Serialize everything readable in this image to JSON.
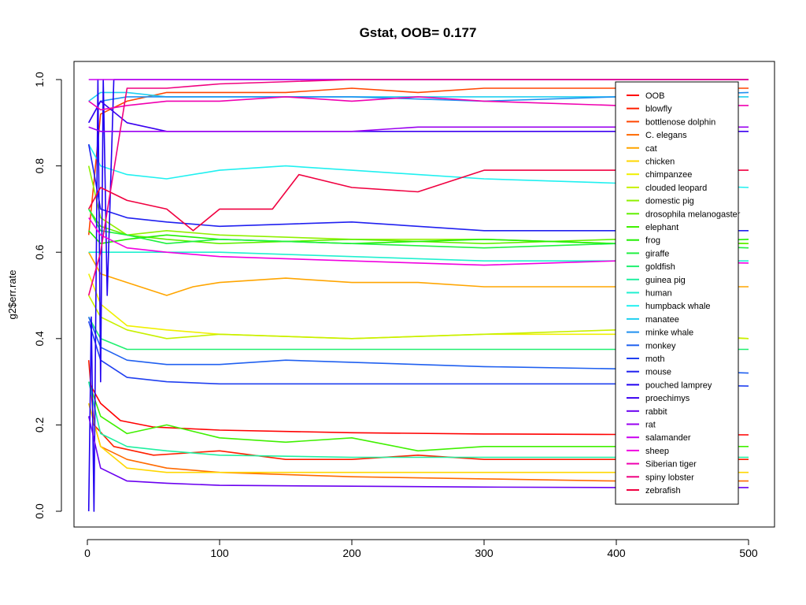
{
  "chart_data": {
    "type": "line",
    "title": "Gstat, OOB= 0.177",
    "xlabel": "",
    "ylabel": "g2$err.rate",
    "xlim": [
      0,
      500
    ],
    "ylim": [
      0,
      1
    ],
    "x_ticks": [
      0,
      100,
      200,
      300,
      400,
      500
    ],
    "y_ticks": [
      0.0,
      0.2,
      0.4,
      0.6,
      0.8,
      1.0
    ],
    "x_tick_labels": [
      "0",
      "100",
      "200",
      "300",
      "400",
      "500"
    ],
    "y_tick_labels": [
      "0.0",
      "0.2",
      "0.4",
      "0.6",
      "0.8",
      "1.0"
    ],
    "grid": false,
    "legend_position": "top-right",
    "series": [
      {
        "name": "OOB",
        "color": "#FF0000",
        "x": [
          1,
          10,
          25,
          50,
          100,
          200,
          300,
          400,
          500
        ],
        "values": [
          0.3,
          0.25,
          0.21,
          0.195,
          0.188,
          0.182,
          0.179,
          0.178,
          0.177
        ]
      },
      {
        "name": "blowfly",
        "color": "#FF2000",
        "x": [
          1,
          5,
          20,
          50,
          100,
          150,
          200,
          250,
          300,
          400,
          500
        ],
        "values": [
          0.35,
          0.2,
          0.15,
          0.13,
          0.14,
          0.12,
          0.12,
          0.13,
          0.12,
          0.12,
          0.12
        ]
      },
      {
        "name": "bottlenose dolphin",
        "color": "#FF4500",
        "x": [
          1,
          10,
          30,
          60,
          100,
          150,
          200,
          250,
          300,
          400,
          500
        ],
        "values": [
          0.64,
          0.92,
          0.95,
          0.97,
          0.97,
          0.97,
          0.98,
          0.97,
          0.98,
          0.98,
          0.98
        ]
      },
      {
        "name": "C. elegans",
        "color": "#FF6A00",
        "x": [
          1,
          10,
          30,
          60,
          100,
          200,
          300,
          400,
          500
        ],
        "values": [
          0.25,
          0.15,
          0.12,
          0.1,
          0.09,
          0.08,
          0.075,
          0.07,
          0.07
        ]
      },
      {
        "name": "cat",
        "color": "#FFA500",
        "x": [
          1,
          10,
          30,
          60,
          80,
          100,
          150,
          200,
          250,
          300,
          400,
          500
        ],
        "values": [
          0.6,
          0.55,
          0.53,
          0.5,
          0.52,
          0.53,
          0.54,
          0.53,
          0.53,
          0.52,
          0.52,
          0.52
        ]
      },
      {
        "name": "chicken",
        "color": "#FFD700",
        "x": [
          1,
          10,
          30,
          60,
          100,
          200,
          300,
          400,
          500
        ],
        "values": [
          0.25,
          0.15,
          0.1,
          0.09,
          0.09,
          0.09,
          0.09,
          0.09,
          0.09
        ]
      },
      {
        "name": "chimpanzee",
        "color": "#F0F000",
        "x": [
          1,
          10,
          30,
          60,
          100,
          200,
          300,
          400,
          500
        ],
        "values": [
          0.55,
          0.48,
          0.43,
          0.42,
          0.41,
          0.4,
          0.41,
          0.41,
          0.4
        ]
      },
      {
        "name": "clouded leopard",
        "color": "#C8F000",
        "x": [
          1,
          10,
          30,
          60,
          100,
          200,
          300,
          400,
          500
        ],
        "values": [
          0.5,
          0.45,
          0.42,
          0.4,
          0.41,
          0.4,
          0.41,
          0.42,
          0.4
        ]
      },
      {
        "name": "domestic pig",
        "color": "#90F000",
        "x": [
          1,
          10,
          30,
          60,
          100,
          200,
          300,
          400,
          500
        ],
        "values": [
          0.8,
          0.68,
          0.64,
          0.65,
          0.64,
          0.63,
          0.63,
          0.62,
          0.62
        ]
      },
      {
        "name": "drosophila melanogaster",
        "color": "#60F000",
        "x": [
          1,
          10,
          30,
          60,
          100,
          200,
          300,
          400,
          500
        ],
        "values": [
          0.7,
          0.66,
          0.64,
          0.63,
          0.62,
          0.63,
          0.62,
          0.63,
          0.62
        ]
      },
      {
        "name": "elephant",
        "color": "#40F000",
        "x": [
          1,
          10,
          30,
          60,
          100,
          150,
          200,
          250,
          300,
          400,
          500
        ],
        "values": [
          0.3,
          0.22,
          0.18,
          0.2,
          0.17,
          0.16,
          0.17,
          0.14,
          0.15,
          0.15,
          0.15
        ]
      },
      {
        "name": "frog",
        "color": "#20F000",
        "x": [
          1,
          10,
          30,
          60,
          100,
          200,
          300,
          400,
          500
        ],
        "values": [
          0.65,
          0.62,
          0.63,
          0.64,
          0.63,
          0.62,
          0.63,
          0.62,
          0.63
        ]
      },
      {
        "name": "giraffe",
        "color": "#20F040",
        "x": [
          1,
          10,
          30,
          60,
          100,
          200,
          300,
          400,
          500
        ],
        "values": [
          0.7,
          0.65,
          0.64,
          0.62,
          0.63,
          0.62,
          0.61,
          0.62,
          0.61
        ]
      },
      {
        "name": "goldfish",
        "color": "#20F070",
        "x": [
          1,
          10,
          30,
          60,
          100,
          200,
          300,
          400,
          500
        ],
        "values": [
          0.45,
          0.4,
          0.375,
          0.375,
          0.375,
          0.375,
          0.375,
          0.375,
          0.375
        ]
      },
      {
        "name": "guinea pig",
        "color": "#20F0A0",
        "x": [
          1,
          10,
          30,
          60,
          100,
          200,
          300,
          400,
          500
        ],
        "values": [
          0.3,
          0.18,
          0.15,
          0.14,
          0.13,
          0.125,
          0.125,
          0.125,
          0.125
        ]
      },
      {
        "name": "human",
        "color": "#20F0D0",
        "x": [
          1,
          10,
          30,
          60,
          100,
          200,
          300,
          400,
          500
        ],
        "values": [
          0.6,
          0.6,
          0.6,
          0.6,
          0.6,
          0.59,
          0.58,
          0.58,
          0.58
        ]
      },
      {
        "name": "humpback whale",
        "color": "#20F0F0",
        "x": [
          1,
          10,
          30,
          60,
          100,
          150,
          200,
          250,
          300,
          400,
          500
        ],
        "values": [
          0.85,
          0.8,
          0.78,
          0.77,
          0.79,
          0.8,
          0.79,
          0.78,
          0.77,
          0.76,
          0.75
        ]
      },
      {
        "name": "manatee",
        "color": "#20D0F0",
        "x": [
          1,
          10,
          30,
          60,
          100,
          200,
          300,
          400,
          500
        ],
        "values": [
          0.95,
          0.97,
          0.97,
          0.96,
          0.96,
          0.96,
          0.96,
          0.96,
          0.96
        ]
      },
      {
        "name": "minke whale",
        "color": "#2090F0",
        "x": [
          1,
          10,
          30,
          60,
          100,
          200,
          300,
          400,
          500
        ],
        "values": [
          0.9,
          0.95,
          0.96,
          0.96,
          0.96,
          0.96,
          0.95,
          0.96,
          0.97
        ]
      },
      {
        "name": "monkey",
        "color": "#2060F0",
        "x": [
          1,
          10,
          30,
          60,
          100,
          150,
          200,
          250,
          300,
          400,
          500
        ],
        "values": [
          0.45,
          0.38,
          0.35,
          0.34,
          0.34,
          0.35,
          0.345,
          0.34,
          0.335,
          0.33,
          0.32
        ]
      },
      {
        "name": "moth",
        "color": "#2040F0",
        "x": [
          1,
          10,
          30,
          60,
          100,
          200,
          300,
          400,
          500
        ],
        "values": [
          0.44,
          0.35,
          0.31,
          0.3,
          0.295,
          0.295,
          0.295,
          0.295,
          0.29
        ]
      },
      {
        "name": "mouse",
        "color": "#2020F0",
        "x": [
          1,
          10,
          30,
          60,
          100,
          200,
          300,
          400,
          500
        ],
        "values": [
          0.85,
          0.7,
          0.68,
          0.67,
          0.66,
          0.67,
          0.65,
          0.65,
          0.65
        ]
      },
      {
        "name": "pouched lamprey",
        "color": "#2000F0",
        "x": [
          1,
          3,
          5,
          8,
          10,
          12,
          15,
          20,
          30,
          60,
          100,
          200,
          300,
          400,
          500
        ],
        "values": [
          0.0,
          0.45,
          0.0,
          1.0,
          0.3,
          1.0,
          0.5,
          1.0,
          1.0,
          1.0,
          1.0,
          1.0,
          1.0,
          1.0,
          1.0
        ]
      },
      {
        "name": "proechimys",
        "color": "#3A00F0",
        "x": [
          1,
          10,
          30,
          60,
          100,
          150,
          180,
          200,
          300,
          400,
          500
        ],
        "values": [
          0.9,
          0.95,
          0.9,
          0.88,
          0.88,
          0.88,
          0.88,
          0.88,
          0.88,
          0.88,
          0.88
        ]
      },
      {
        "name": "rabbit",
        "color": "#6A00F0",
        "x": [
          1,
          10,
          30,
          60,
          100,
          200,
          300,
          400,
          500
        ],
        "values": [
          0.22,
          0.1,
          0.07,
          0.065,
          0.06,
          0.058,
          0.056,
          0.055,
          0.055
        ]
      },
      {
        "name": "rat",
        "color": "#9A00F0",
        "x": [
          1,
          10,
          30,
          60,
          100,
          200,
          250,
          300,
          400,
          500
        ],
        "values": [
          0.89,
          0.88,
          0.88,
          0.88,
          0.88,
          0.88,
          0.89,
          0.89,
          0.89,
          0.89
        ]
      },
      {
        "name": "salamander",
        "color": "#CA00F0",
        "x": [
          1,
          10,
          30,
          60,
          100,
          200,
          300,
          400,
          500
        ],
        "values": [
          1.0,
          1.0,
          1.0,
          1.0,
          1.0,
          1.0,
          1.0,
          1.0,
          1.0
        ]
      },
      {
        "name": "sheep",
        "color": "#F000E0",
        "x": [
          1,
          10,
          30,
          60,
          100,
          200,
          300,
          400,
          500
        ],
        "values": [
          0.68,
          0.64,
          0.61,
          0.6,
          0.59,
          0.58,
          0.57,
          0.58,
          0.575
        ]
      },
      {
        "name": "Siberian tiger",
        "color": "#F000B0",
        "x": [
          1,
          10,
          30,
          60,
          100,
          150,
          200,
          250,
          300,
          400,
          500
        ],
        "values": [
          0.95,
          0.93,
          0.94,
          0.95,
          0.95,
          0.96,
          0.95,
          0.96,
          0.95,
          0.94,
          0.94
        ]
      },
      {
        "name": "spiny lobster",
        "color": "#F00080",
        "x": [
          1,
          10,
          30,
          60,
          100,
          200,
          300,
          400,
          500
        ],
        "values": [
          0.5,
          0.6,
          0.98,
          0.98,
          0.99,
          1.0,
          1.0,
          1.0,
          1.0
        ]
      },
      {
        "name": "zebrafish",
        "color": "#F00040",
        "x": [
          1,
          10,
          30,
          60,
          80,
          100,
          140,
          160,
          200,
          250,
          300,
          400,
          500
        ],
        "values": [
          0.7,
          0.75,
          0.72,
          0.7,
          0.65,
          0.7,
          0.7,
          0.78,
          0.75,
          0.74,
          0.79,
          0.79,
          0.79
        ]
      }
    ]
  }
}
